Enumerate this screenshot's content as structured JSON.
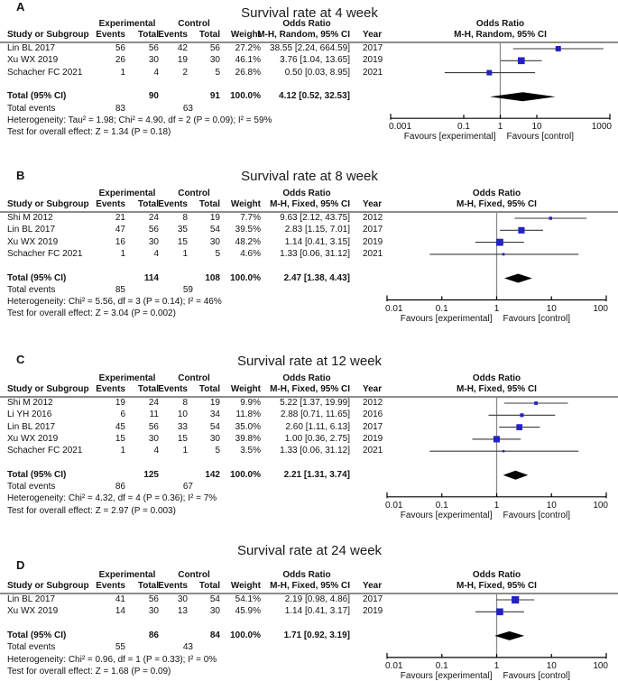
{
  "figure": {
    "panels": [
      {
        "label": "A",
        "title": "Survival rate at 4 week",
        "group_headers": {
          "experimental": "Experimental",
          "control": "Control",
          "odds_ratio": "Odds Ratio"
        },
        "col_headers": {
          "study": "Study or Subgroup",
          "exp_events": "Events",
          "exp_total": "Total",
          "ctl_events": "Events",
          "ctl_total": "Total",
          "weight": "Weight",
          "estimate": "M-H, Random, 95% CI",
          "year": "Year"
        },
        "plot_headers": {
          "line1": "Odds Ratio",
          "line2": "M-H, Random, 95% CI"
        },
        "studies": [
          {
            "study": "Lin BL 2017",
            "exp_events": "56",
            "exp_total": "56",
            "ctl_events": "42",
            "ctl_total": "56",
            "weight": "27.2%",
            "estimate": "38.55 [2.24, 664.59]",
            "year": "2017"
          },
          {
            "study": "Xu WX 2019",
            "exp_events": "26",
            "exp_total": "30",
            "ctl_events": "19",
            "ctl_total": "30",
            "weight": "46.1%",
            "estimate": "3.76 [1.04, 13.65]",
            "year": "2019"
          },
          {
            "study": "Schacher FC 2021",
            "exp_events": "1",
            "exp_total": "4",
            "ctl_events": "2",
            "ctl_total": "5",
            "weight": "26.8%",
            "estimate": "0.50 [0.03, 8.95]",
            "year": "2021"
          }
        ],
        "total_row": {
          "label": "Total (95% CI)",
          "exp_total": "90",
          "ctl_total": "91",
          "weight": "100.0%",
          "estimate": "4.12 [0.52, 32.53]"
        },
        "total_events_row": {
          "label": "Total events",
          "exp": "83",
          "ctl": "63"
        },
        "heterogeneity": "Heterogeneity: Tau² = 1.98; Chi² = 4.90, df = 2 (P = 0.09); I² = 59%",
        "overall_test": "Test for overall effect: Z = 1.34 (P = 0.18)",
        "axis_tick_labels": [
          "0.001",
          "0.1",
          "1",
          "10",
          "1000"
        ],
        "favours_left": "Favours [experimental]",
        "favours_right": "Favours [control]"
      },
      {
        "label": "B",
        "title": "Survival rate at 8 week",
        "group_headers": {
          "experimental": "Experimental",
          "control": "Control",
          "odds_ratio": "Odds Ratio"
        },
        "col_headers": {
          "study": "Study or Subgroup",
          "exp_events": "Events",
          "exp_total": "Total",
          "ctl_events": "Events",
          "ctl_total": "Total",
          "weight": "Weight",
          "estimate": "M-H, Fixed, 95% CI",
          "year": "Year"
        },
        "plot_headers": {
          "line1": "Odds Ratio",
          "line2": "M-H, Fixed, 95% CI"
        },
        "studies": [
          {
            "study": "Shi M 2012",
            "exp_events": "21",
            "exp_total": "24",
            "ctl_events": "8",
            "ctl_total": "19",
            "weight": "7.7%",
            "estimate": "9.63 [2.12, 43.75]",
            "year": "2012"
          },
          {
            "study": "Lin BL 2017",
            "exp_events": "47",
            "exp_total": "56",
            "ctl_events": "35",
            "ctl_total": "54",
            "weight": "39.5%",
            "estimate": "2.83 [1.15, 7.01]",
            "year": "2017"
          },
          {
            "study": "Xu WX 2019",
            "exp_events": "16",
            "exp_total": "30",
            "ctl_events": "15",
            "ctl_total": "30",
            "weight": "48.2%",
            "estimate": "1.14 [0.41, 3.15]",
            "year": "2019"
          },
          {
            "study": "Schacher FC 2021",
            "exp_events": "1",
            "exp_total": "4",
            "ctl_events": "1",
            "ctl_total": "5",
            "weight": "4.6%",
            "estimate": "1.33 [0.06, 31.12]",
            "year": "2021"
          }
        ],
        "total_row": {
          "label": "Total (95% CI)",
          "exp_total": "114",
          "ctl_total": "108",
          "weight": "100.0%",
          "estimate": "2.47 [1.38, 4.43]"
        },
        "total_events_row": {
          "label": "Total events",
          "exp": "85",
          "ctl": "59"
        },
        "heterogeneity": "Heterogeneity: Chi² = 5.56, df = 3 (P = 0.14); I² = 46%",
        "overall_test": "Test for overall effect: Z = 3.04 (P = 0.002)",
        "axis_tick_labels": [
          "0.01",
          "0.1",
          "1",
          "10",
          "100"
        ],
        "favours_left": "Favours [experimental]",
        "favours_right": "Favours [control]"
      },
      {
        "label": "C",
        "title": "Survival rate at 12 week",
        "group_headers": {
          "experimental": "Experimental",
          "control": "Control",
          "odds_ratio": "Odds Ratio"
        },
        "col_headers": {
          "study": "Study or Subgroup",
          "exp_events": "Events",
          "exp_total": "Total",
          "ctl_events": "Events",
          "ctl_total": "Total",
          "weight": "Weight",
          "estimate": "M-H, Fixed, 95% CI",
          "year": "Year"
        },
        "plot_headers": {
          "line1": "Odds Ratio",
          "line2": "M-H, Fixed, 95% CI"
        },
        "studies": [
          {
            "study": "Shi M 2012",
            "exp_events": "19",
            "exp_total": "24",
            "ctl_events": "8",
            "ctl_total": "19",
            "weight": "9.9%",
            "estimate": "5.22 [1.37, 19.99]",
            "year": "2012"
          },
          {
            "study": "Li YH 2016",
            "exp_events": "6",
            "exp_total": "11",
            "ctl_events": "10",
            "ctl_total": "34",
            "weight": "11.8%",
            "estimate": "2.88 [0.71, 11.65]",
            "year": "2016"
          },
          {
            "study": "Lin BL 2017",
            "exp_events": "45",
            "exp_total": "56",
            "ctl_events": "33",
            "ctl_total": "54",
            "weight": "35.0%",
            "estimate": "2.60 [1.11, 6.13]",
            "year": "2017"
          },
          {
            "study": "Xu WX 2019",
            "exp_events": "15",
            "exp_total": "30",
            "ctl_events": "15",
            "ctl_total": "30",
            "weight": "39.8%",
            "estimate": "1.00 [0.36, 2.75]",
            "year": "2019"
          },
          {
            "study": "Schacher FC 2021",
            "exp_events": "1",
            "exp_total": "4",
            "ctl_events": "1",
            "ctl_total": "5",
            "weight": "3.5%",
            "estimate": "1.33 [0.06, 31.12]",
            "year": "2021"
          }
        ],
        "total_row": {
          "label": "Total (95% CI)",
          "exp_total": "125",
          "ctl_total": "142",
          "weight": "100.0%",
          "estimate": "2.21 [1.31, 3.74]"
        },
        "total_events_row": {
          "label": "Total events",
          "exp": "86",
          "ctl": "67"
        },
        "heterogeneity": "Heterogeneity: Chi² = 4.32, df = 4 (P = 0.36); I² = 7%",
        "overall_test": "Test for overall effect: Z = 2.97 (P = 0.003)",
        "axis_tick_labels": [
          "0.01",
          "0.1",
          "1",
          "10",
          "100"
        ],
        "favours_left": "Favours [experimental]",
        "favours_right": "Favours [control]"
      },
      {
        "label": "D",
        "title": "Survival rate at 24 week",
        "group_headers": {
          "experimental": "Experimental",
          "control": "Control",
          "odds_ratio": "Odds Ratio"
        },
        "col_headers": {
          "study": "Study or Subgroup",
          "exp_events": "Events",
          "exp_total": "Total",
          "ctl_events": "Events",
          "ctl_total": "Total",
          "weight": "Weight",
          "estimate": "M-H, Fixed, 95% CI",
          "year": "Year"
        },
        "plot_headers": {
          "line1": "Odds Ratio",
          "line2": "M-H, Fixed, 95% CI"
        },
        "studies": [
          {
            "study": "Lin BL 2017",
            "exp_events": "41",
            "exp_total": "56",
            "ctl_events": "30",
            "ctl_total": "54",
            "weight": "54.1%",
            "estimate": "2.19 [0.98, 4.86]",
            "year": "2017"
          },
          {
            "study": "Xu WX 2019",
            "exp_events": "14",
            "exp_total": "30",
            "ctl_events": "13",
            "ctl_total": "30",
            "weight": "45.9%",
            "estimate": "1.14 [0.41, 3.17]",
            "year": "2019"
          }
        ],
        "total_row": {
          "label": "Total (95% CI)",
          "exp_total": "86",
          "ctl_total": "84",
          "weight": "100.0%",
          "estimate": "1.71 [0.92, 3.19]"
        },
        "total_events_row": {
          "label": "Total events",
          "exp": "55",
          "ctl": "43"
        },
        "heterogeneity": "Heterogeneity: Chi² = 0.96, df = 1 (P = 0.33); I² = 0%",
        "overall_test": "Test for overall effect: Z = 1.68 (P = 0.09)",
        "axis_tick_labels": [
          "0.01",
          "0.1",
          "1",
          "10",
          "100"
        ],
        "favours_left": "Favours [experimental]",
        "favours_right": "Favours [control]"
      }
    ]
  },
  "chart_data": [
    {
      "type": "forest",
      "panel": "A",
      "title": "Survival rate at 4 week",
      "effect_measure": "Odds Ratio, M-H, Random, 95% CI",
      "x_scale": "log",
      "xlim": [
        0.001,
        1000
      ],
      "x_ticks": [
        0.001,
        0.1,
        1,
        10,
        1000
      ],
      "x_axis_labels": [
        "Favours [experimental]",
        "Favours [control]"
      ],
      "studies": [
        {
          "name": "Lin BL 2017",
          "or": 38.55,
          "ci": [
            2.24,
            664.59
          ],
          "weight_pct": 27.2,
          "year": 2017
        },
        {
          "name": "Xu WX 2019",
          "or": 3.76,
          "ci": [
            1.04,
            13.65
          ],
          "weight_pct": 46.1,
          "year": 2019
        },
        {
          "name": "Schacher FC 2021",
          "or": 0.5,
          "ci": [
            0.03,
            8.95
          ],
          "weight_pct": 26.8,
          "year": 2021
        }
      ],
      "total": {
        "or": 4.12,
        "ci": [
          0.52,
          32.53
        ]
      }
    },
    {
      "type": "forest",
      "panel": "B",
      "title": "Survival rate at 8 week",
      "effect_measure": "Odds Ratio, M-H, Fixed, 95% CI",
      "x_scale": "log",
      "xlim": [
        0.01,
        100
      ],
      "x_ticks": [
        0.01,
        0.1,
        1,
        10,
        100
      ],
      "x_axis_labels": [
        "Favours [experimental]",
        "Favours [control]"
      ],
      "studies": [
        {
          "name": "Shi M 2012",
          "or": 9.63,
          "ci": [
            2.12,
            43.75
          ],
          "weight_pct": 7.7,
          "year": 2012
        },
        {
          "name": "Lin BL 2017",
          "or": 2.83,
          "ci": [
            1.15,
            7.01
          ],
          "weight_pct": 39.5,
          "year": 2017
        },
        {
          "name": "Xu WX 2019",
          "or": 1.14,
          "ci": [
            0.41,
            3.15
          ],
          "weight_pct": 48.2,
          "year": 2019
        },
        {
          "name": "Schacher FC 2021",
          "or": 1.33,
          "ci": [
            0.06,
            31.12
          ],
          "weight_pct": 4.6,
          "year": 2021
        }
      ],
      "total": {
        "or": 2.47,
        "ci": [
          1.38,
          4.43
        ]
      }
    },
    {
      "type": "forest",
      "panel": "C",
      "title": "Survival rate at 12 week",
      "effect_measure": "Odds Ratio, M-H, Fixed, 95% CI",
      "x_scale": "log",
      "xlim": [
        0.01,
        100
      ],
      "x_ticks": [
        0.01,
        0.1,
        1,
        10,
        100
      ],
      "x_axis_labels": [
        "Favours [experimental]",
        "Favours [control]"
      ],
      "studies": [
        {
          "name": "Shi M 2012",
          "or": 5.22,
          "ci": [
            1.37,
            19.99
          ],
          "weight_pct": 9.9,
          "year": 2012
        },
        {
          "name": "Li YH 2016",
          "or": 2.88,
          "ci": [
            0.71,
            11.65
          ],
          "weight_pct": 11.8,
          "year": 2016
        },
        {
          "name": "Lin BL 2017",
          "or": 2.6,
          "ci": [
            1.11,
            6.13
          ],
          "weight_pct": 35.0,
          "year": 2017
        },
        {
          "name": "Xu WX 2019",
          "or": 1.0,
          "ci": [
            0.36,
            2.75
          ],
          "weight_pct": 39.8,
          "year": 2019
        },
        {
          "name": "Schacher FC 2021",
          "or": 1.33,
          "ci": [
            0.06,
            31.12
          ],
          "weight_pct": 3.5,
          "year": 2021
        }
      ],
      "total": {
        "or": 2.21,
        "ci": [
          1.31,
          3.74
        ]
      }
    },
    {
      "type": "forest",
      "panel": "D",
      "title": "Survival rate at 24 week",
      "effect_measure": "Odds Ratio, M-H, Fixed, 95% CI",
      "x_scale": "log",
      "xlim": [
        0.01,
        100
      ],
      "x_ticks": [
        0.01,
        0.1,
        1,
        10,
        100
      ],
      "x_axis_labels": [
        "Favours [experimental]",
        "Favours [control]"
      ],
      "studies": [
        {
          "name": "Lin BL 2017",
          "or": 2.19,
          "ci": [
            0.98,
            4.86
          ],
          "weight_pct": 54.1,
          "year": 2017
        },
        {
          "name": "Xu WX 2019",
          "or": 1.14,
          "ci": [
            0.41,
            3.17
          ],
          "weight_pct": 45.9,
          "year": 2019
        }
      ],
      "total": {
        "or": 1.71,
        "ci": [
          0.92,
          3.19
        ]
      }
    }
  ],
  "colors": {
    "marker": "#2222C6",
    "diamond": "#000000",
    "ci_line": "#3a3a3a",
    "axis": "#000000",
    "header_rule": "#8c8c8c",
    "null_line": "#888888",
    "background": "#ffffff"
  }
}
